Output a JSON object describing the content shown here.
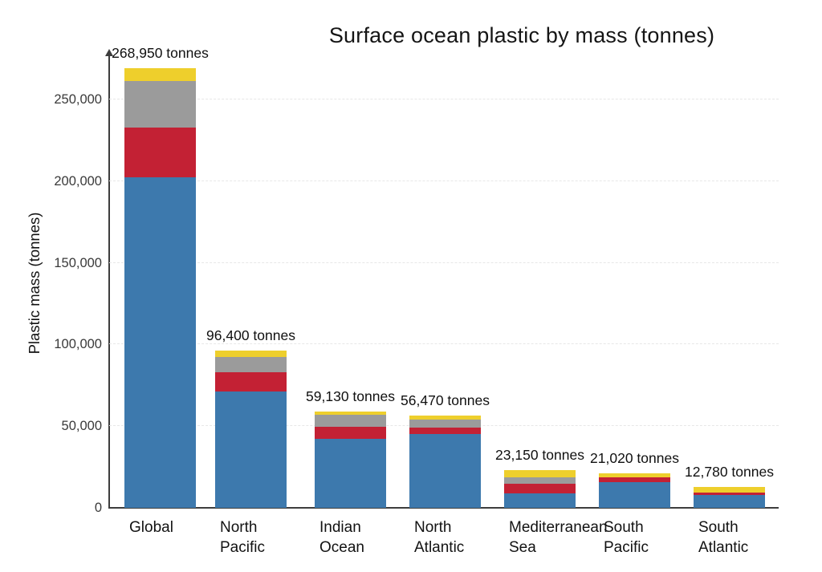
{
  "title": "Surface ocean plastic by mass (tonnes)",
  "y_axis": {
    "label": "Plastic mass (tonnes)",
    "tick_labels": [
      "0",
      "50,000",
      "100,000",
      "150,000",
      "200,000",
      "250,000"
    ],
    "tick_values": [
      0,
      50000,
      100000,
      150000,
      200000,
      250000
    ]
  },
  "colors": {
    "blue_segment": "#3d79ad",
    "red_segment": "#c32134",
    "gray_segment": "#9b9b9b",
    "yellow_segment": "#eecf2c",
    "axis": "#3d3d3d",
    "gridline": "#e7e7e7"
  },
  "chart_data": {
    "type": "bar",
    "stacked": true,
    "title": "Surface ocean plastic by mass (tonnes)",
    "xlabel": "",
    "ylabel": "Plastic mass (tonnes)",
    "ylim": [
      0,
      275000
    ],
    "yticks": [
      0,
      50000,
      100000,
      150000,
      200000,
      250000
    ],
    "grid": "horizontal-dashed",
    "legend": "none",
    "categories": [
      "Global",
      "North Pacific",
      "Indian Ocean",
      "North Atlantic",
      "Mediterranean Sea",
      "South Pacific",
      "South Atlantic"
    ],
    "categories_lines": [
      [
        "Global"
      ],
      [
        "North",
        "Pacific"
      ],
      [
        "Indian",
        "Ocean"
      ],
      [
        "North",
        "Atlantic"
      ],
      [
        "Mediterranean",
        "Sea"
      ],
      [
        "South",
        "Pacific"
      ],
      [
        "South",
        "Atlantic"
      ]
    ],
    "totals": [
      268950,
      96400,
      59130,
      56470,
      23150,
      21020,
      12780
    ],
    "total_labels": [
      "268,950 tonnes",
      "96,400 tonnes",
      "59,130 tonnes",
      "56,470 tonnes",
      "23,150 tonnes",
      "21,020 tonnes",
      "12,780 tonnes"
    ],
    "series": [
      {
        "name": "blue segment (bottom)",
        "color": "#3d79ad",
        "values": [
          202500,
          71400,
          42330,
          45220,
          8950,
          15670,
          7880
        ]
      },
      {
        "name": "red segment",
        "color": "#c32134",
        "values": [
          30500,
          11800,
          7400,
          3900,
          5900,
          2900,
          1500
        ]
      },
      {
        "name": "gray segment",
        "color": "#9b9b9b",
        "values": [
          28500,
          9300,
          7400,
          4900,
          3900,
          0,
          0
        ]
      },
      {
        "name": "yellow segment (top)",
        "color": "#eecf2c",
        "values": [
          7450,
          3900,
          2000,
          2450,
          4400,
          2450,
          3400
        ]
      }
    ]
  }
}
